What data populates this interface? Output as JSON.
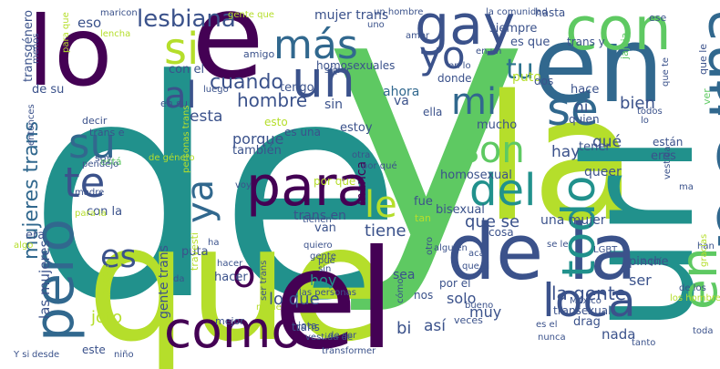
{
  "words": [
    {
      "text": "y",
      "color": "#5ec962"
    },
    {
      "text": "de",
      "color": "#21918c"
    },
    {
      "text": "que",
      "color": "#b5de2b"
    },
    {
      "text": "la",
      "color": "#b5de2b"
    },
    {
      "text": "el",
      "color": "#440154"
    },
    {
      "text": "url",
      "color": "#21918c"
    },
    {
      "text": "lo",
      "color": "#440154"
    },
    {
      "text": "e",
      "color": "#440154"
    },
    {
      "text": "en",
      "color": "#31688e"
    },
    {
      "text": "en",
      "color": "#5ec962"
    },
    {
      "text": "por",
      "color": "#31688e"
    },
    {
      "text": "de la",
      "color": "#3b528b"
    },
    {
      "text": "con",
      "color": "#5ec962"
    },
    {
      "text": "una",
      "color": "#31688e"
    },
    {
      "text": "para",
      "color": "#440154"
    },
    {
      "text": "como",
      "color": "#440154"
    },
    {
      "text": "pero",
      "color": "#31688e"
    },
    {
      "text": "gay",
      "color": "#3b528b"
    },
    {
      "text": "un",
      "color": "#3b528b"
    },
    {
      "text": "su",
      "color": "#31688e"
    },
    {
      "text": "se",
      "color": "#31688e"
    },
    {
      "text": "mi",
      "color": "#31688e"
    },
    {
      "text": "del",
      "color": "#21918c"
    },
    {
      "text": "loca",
      "color": "#3b528b"
    },
    {
      "text": "todo",
      "color": "#21918c"
    },
    {
      "text": "más",
      "color": "#31688e"
    },
    {
      "text": "yo",
      "color": "#3b528b"
    },
    {
      "text": "si",
      "color": "#b5de2b"
    },
    {
      "text": "te",
      "color": "#3b528b"
    },
    {
      "text": "son",
      "color": "#5ec962"
    },
    {
      "text": "ya",
      "color": "#31688e"
    },
    {
      "text": "al",
      "color": "#3b528b"
    },
    {
      "text": "o",
      "color": "#440154"
    },
    {
      "text": "le",
      "color": "#b5de2b"
    },
    {
      "text": "es",
      "color": "#3b528b"
    },
    {
      "text": "tu",
      "color": "#2c728e"
    },
    {
      "text": "lesbiana",
      "color": "#3b528b"
    },
    {
      "text": "mujeres trans",
      "color": "#31688e"
    },
    {
      "text": "cuando",
      "color": "#3b528b"
    },
    {
      "text": "que se",
      "color": "#3b528b"
    },
    {
      "text": "tiene",
      "color": "#3b528b"
    },
    {
      "text": "hombre",
      "color": "#3b528b"
    },
    {
      "text": "la gente",
      "color": "#3b528b"
    },
    {
      "text": "lo que",
      "color": "#3b528b"
    },
    {
      "text": "las mujeres",
      "color": "#3b528b"
    },
    {
      "text": "gente trans",
      "color": "#3b528b"
    },
    {
      "text": "hoy",
      "color": "#21918c"
    },
    {
      "text": "porque",
      "color": "#3b528b"
    },
    {
      "text": "esta",
      "color": "#3b528b"
    },
    {
      "text": "bien",
      "color": "#3b528b"
    },
    {
      "text": "ni",
      "color": "#3b528b"
    },
    {
      "text": "hay",
      "color": "#3b528b"
    },
    {
      "text": "qué",
      "color": "#3b528b"
    },
    {
      "text": "así",
      "color": "#3b528b"
    },
    {
      "text": "solo",
      "color": "#3b528b"
    },
    {
      "text": "muy",
      "color": "#3b528b"
    },
    {
      "text": "bi",
      "color": "#3b528b"
    },
    {
      "text": "ser",
      "color": "#3b528b"
    },
    {
      "text": "nada",
      "color": "#3b528b"
    },
    {
      "text": "joto",
      "color": "#b5de2b"
    },
    {
      "text": "marica",
      "color": "#440154"
    },
    {
      "text": "ahora",
      "color": "#31688e"
    },
    {
      "text": "puto",
      "color": "#b5de2b"
    },
    {
      "text": "jajaja",
      "color": "#5ec962"
    },
    {
      "text": "mujer trans",
      "color": "#3b528b"
    },
    {
      "text": "eso",
      "color": "#3b528b"
    },
    {
      "text": "con el",
      "color": "#3b528b"
    },
    {
      "text": "tengo",
      "color": "#3b528b"
    },
    {
      "text": "homosexuales",
      "color": "#3b528b"
    },
    {
      "text": "homosexual",
      "color": "#3b528b"
    },
    {
      "text": "bisexual",
      "color": "#3b528b"
    },
    {
      "text": "una mujer",
      "color": "#3b528b"
    },
    {
      "text": "queer",
      "color": "#3b528b"
    },
    {
      "text": "tener",
      "color": "#3b528b"
    },
    {
      "text": "trans en",
      "color": "#3b528b"
    },
    {
      "text": "van",
      "color": "#3b528b"
    },
    {
      "text": "hacer",
      "color": "#3b528b"
    },
    {
      "text": "puta",
      "color": "#3b528b"
    },
    {
      "text": "sea",
      "color": "#3b528b"
    },
    {
      "text": "era",
      "color": "#3b528b"
    },
    {
      "text": "con la",
      "color": "#3b528b"
    },
    {
      "text": "fue",
      "color": "#3b528b"
    },
    {
      "text": "pinche",
      "color": "#3b528b"
    },
    {
      "text": "sin",
      "color": "#3b528b"
    },
    {
      "text": "también",
      "color": "#3b528b"
    },
    {
      "text": "mucho",
      "color": "#3b528b"
    },
    {
      "text": "hace",
      "color": "#3b528b"
    },
    {
      "text": "eres",
      "color": "#3b528b"
    },
    {
      "text": "están",
      "color": "#3b528b"
    },
    {
      "text": "dos",
      "color": "#3b528b"
    },
    {
      "text": "estoy",
      "color": "#3b528b"
    },
    {
      "text": "va",
      "color": "#3b528b"
    },
    {
      "text": "siempre",
      "color": "#3b528b"
    },
    {
      "text": "es que",
      "color": "#3b528b"
    },
    {
      "text": "hasta",
      "color": "#3b528b"
    },
    {
      "text": "trans y",
      "color": "#3b528b"
    },
    {
      "text": "donde",
      "color": "#3b528b"
    },
    {
      "text": "ella",
      "color": "#3b528b"
    },
    {
      "text": "quien",
      "color": "#3b528b"
    },
    {
      "text": "drag",
      "color": "#3b528b"
    },
    {
      "text": "transexual",
      "color": "#3b528b"
    },
    {
      "text": "cosa",
      "color": "#3b528b"
    },
    {
      "text": "por el",
      "color": "#3b528b"
    },
    {
      "text": "nos",
      "color": "#3b528b"
    },
    {
      "text": "veces",
      "color": "#3b528b"
    },
    {
      "text": "este",
      "color": "#3b528b"
    },
    {
      "text": "mejor",
      "color": "#3b528b"
    },
    {
      "text": "travesti",
      "color": "#b5de2b"
    },
    {
      "text": "por que",
      "color": "#b5de2b"
    },
    {
      "text": "decir",
      "color": "#3b528b"
    },
    {
      "text": "esto",
      "color": "#b5de2b"
    },
    {
      "text": "es una",
      "color": "#3b528b"
    },
    {
      "text": "trans e",
      "color": "#3b528b"
    },
    {
      "text": "soy",
      "color": "#3b528b"
    },
    {
      "text": "está",
      "color": "#5ec962"
    },
    {
      "text": "pendejo",
      "color": "#3b528b"
    },
    {
      "text": "entonces",
      "color": "#3b528b"
    },
    {
      "text": "de su",
      "color": "#3b528b"
    },
    {
      "text": "en su",
      "color": "#3b528b"
    },
    {
      "text": "luego",
      "color": "#3b528b"
    },
    {
      "text": "amigo",
      "color": "#3b528b"
    },
    {
      "text": "súper",
      "color": "#3b528b"
    },
    {
      "text": "gente que",
      "color": "#b5de2b"
    },
    {
      "text": "un hombre",
      "color": "#3b528b"
    },
    {
      "text": "la comunidad",
      "color": "#3b528b"
    },
    {
      "text": "maricon",
      "color": "#3b528b"
    },
    {
      "text": "lencha",
      "color": "#b5de2b"
    },
    {
      "text": "menos",
      "color": "#3b528b"
    },
    {
      "text": "transgénero",
      "color": "#3b528b"
    },
    {
      "text": "para que",
      "color": "#b5de2b"
    },
    {
      "text": "amor",
      "color": "#3b528b"
    },
    {
      "text": "en un",
      "color": "#3b528b"
    },
    {
      "text": "en lo",
      "color": "#3b528b"
    },
    {
      "text": "uno",
      "color": "#3b528b"
    },
    {
      "text": "ese",
      "color": "#3b528b"
    },
    {
      "text": "ver",
      "color": "#5ec962"
    },
    {
      "text": "que le",
      "color": "#3b528b"
    },
    {
      "text": "que te",
      "color": "#3b528b"
    },
    {
      "text": "todos",
      "color": "#3b528b"
    },
    {
      "text": "lo",
      "color": "#3b528b"
    },
    {
      "text": "otra",
      "color": "#3b528b"
    },
    {
      "text": "de género",
      "color": "#b5de2b"
    },
    {
      "text": "por qué",
      "color": "#3b528b"
    },
    {
      "text": "personas trans",
      "color": "#b5de2b"
    },
    {
      "text": "madre",
      "color": "#3b528b"
    },
    {
      "text": "voy",
      "color": "#3b528b"
    },
    {
      "text": "alguien",
      "color": "#3b528b"
    },
    {
      "text": "tienen",
      "color": "#3b528b"
    },
    {
      "text": "bueno",
      "color": "#3b528b"
    },
    {
      "text": "acá",
      "color": "#3b528b"
    },
    {
      "text": "LGBT",
      "color": "#3b528b"
    },
    {
      "text": "se le",
      "color": "#3b528b"
    },
    {
      "text": "han",
      "color": "#3b528b"
    },
    {
      "text": "aquí",
      "color": "#3b528b"
    },
    {
      "text": "gracias",
      "color": "#b5de2b"
    },
    {
      "text": "de los",
      "color": "#3b528b"
    },
    {
      "text": "ma",
      "color": "#3b528b"
    },
    {
      "text": "vestida",
      "color": "#3b528b"
    },
    {
      "text": "algo",
      "color": "#b5de2b"
    },
    {
      "text": "para la",
      "color": "#b5de2b"
    },
    {
      "text": "tan",
      "color": "#b5de2b"
    },
    {
      "text": "quiero",
      "color": "#3b528b"
    },
    {
      "text": "que si",
      "color": "#3b528b"
    },
    {
      "text": "puede",
      "color": "#b5de2b"
    },
    {
      "text": "da",
      "color": "#3b528b"
    },
    {
      "text": "ser trans",
      "color": "#3b528b"
    },
    {
      "text": "las personas",
      "color": "#3b528b"
    },
    {
      "text": "cómo",
      "color": "#3b528b"
    },
    {
      "text": "México",
      "color": "#3b528b"
    },
    {
      "text": "los hombres",
      "color": "#b5de2b"
    },
    {
      "text": "año",
      "color": "#b5de2b"
    },
    {
      "text": "jota",
      "color": "#3b528b"
    },
    {
      "text": "nunca",
      "color": "#3b528b"
    },
    {
      "text": "tanto",
      "color": "#3b528b"
    },
    {
      "text": "toda",
      "color": "#3b528b"
    },
    {
      "text": "Y si",
      "color": "#3b528b"
    },
    {
      "text": "desde",
      "color": "#3b528b"
    },
    {
      "text": "niño",
      "color": "#3b528b"
    },
    {
      "text": "vestida de",
      "color": "#3b528b"
    },
    {
      "text": "transformer",
      "color": "#3b528b"
    },
    {
      "text": "de ser",
      "color": "#3b528b"
    },
    {
      "text": "trans",
      "color": "#3b528b"
    },
    {
      "text": "nadie",
      "color": "#b5de2b"
    },
    {
      "text": "es el",
      "color": "#3b528b"
    },
    {
      "text": "otro",
      "color": "#3b528b"
    },
    {
      "text": "pue",
      "color": "#3b528b"
    },
    {
      "text": "ha",
      "color": "#3b528b"
    },
    {
      "text": "hacer",
      "color": "#3b528b"
    },
    {
      "text": "sin",
      "color": "#3b528b"
    },
    {
      "text": "gente",
      "color": "#3b528b"
    }
  ]
}
